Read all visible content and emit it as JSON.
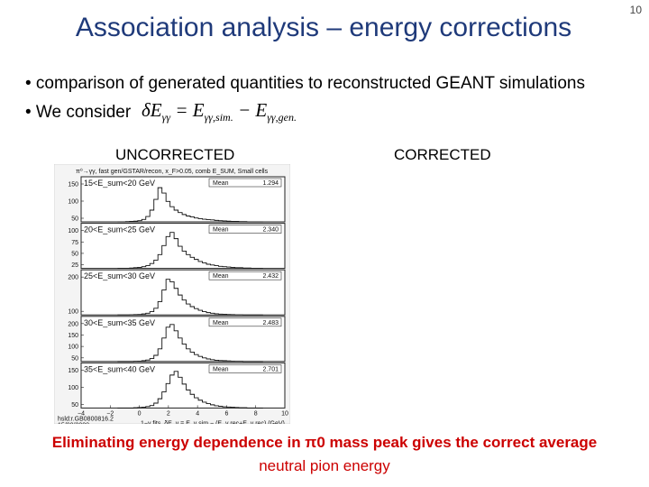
{
  "slide": {
    "title": "Association analysis – energy corrections",
    "page_number": "10",
    "bullets": [
      "• comparison of generated quantities to reconstructed GEANT simulations",
      "• We consider"
    ],
    "formula": {
      "lhs": "δE",
      "lhs_sub": "γγ",
      "eq": " = E",
      "t1_sub": "γγ,sim.",
      "minus": " − E",
      "t2_sub": "γγ,gen."
    },
    "headings": {
      "uncorrected": "UNCORRECTED",
      "corrected": "CORRECTED"
    },
    "conclusion": {
      "line1": "Eliminating energy dependence in π0 mass peak gives the correct average",
      "line2": "neutral pion energy"
    }
  },
  "chart_data": {
    "type": "histogram",
    "header": "π⁰→γγ, fast gen/GSTAR/recon, x_F>0.05, comb E_SUM, Small cells",
    "xlabel": "1−γ fits, δE_γ = E_γ,sim − (E_γ,rec+E_γ,rec) (GeV)",
    "x_ticks": [
      "−4",
      "−2",
      "0",
      "2",
      "4",
      "6",
      "8",
      "10"
    ],
    "xlim": [
      -4,
      10
    ],
    "footer": [
      "hsld:r.GB0800816.2",
      "15/08/2008"
    ],
    "panels": [
      {
        "range": "15<E_sum<20 GeV",
        "stat_label": "Mean",
        "mean": "1.294",
        "y_ticks": [
          "150",
          "100",
          "50"
        ],
        "ylim": [
          0,
          170
        ],
        "values": [
          0,
          0,
          1,
          2,
          3,
          5,
          10,
          22,
          48,
          92,
          140,
          118,
          84,
          62,
          48,
          38,
          30,
          24,
          20,
          16,
          13,
          11,
          9,
          8,
          6,
          5,
          4,
          3,
          2,
          2,
          1,
          1,
          0,
          0,
          0,
          0
        ]
      },
      {
        "range": "20<E_sum<25 GeV",
        "stat_label": "Mean",
        "mean": "2.340",
        "y_ticks": [
          "100",
          "75",
          "50",
          "25"
        ],
        "ylim": [
          0,
          120
        ],
        "values": [
          0,
          0,
          0,
          1,
          2,
          3,
          5,
          8,
          14,
          24,
          40,
          66,
          92,
          104,
          86,
          64,
          50,
          40,
          32,
          26,
          20,
          16,
          12,
          10,
          8,
          6,
          5,
          4,
          3,
          2,
          2,
          1,
          1,
          0,
          0,
          0
        ]
      },
      {
        "range": "25<E_sum<30 GeV",
        "stat_label": "Mean",
        "mean": "2.432",
        "y_ticks": [
          "200",
          "100"
        ],
        "ylim": [
          0,
          250
        ],
        "values": [
          0,
          0,
          0,
          1,
          2,
          3,
          6,
          10,
          20,
          40,
          80,
          150,
          215,
          200,
          160,
          120,
          90,
          66,
          50,
          38,
          28,
          20,
          14,
          10,
          7,
          5,
          4,
          3,
          2,
          1,
          1,
          0,
          0,
          0,
          0,
          0
        ]
      },
      {
        "range": "30<E_sum<35 GeV",
        "stat_label": "Mean",
        "mean": "2.483",
        "y_ticks": [
          "200",
          "150",
          "100",
          "50"
        ],
        "ylim": [
          0,
          230
        ],
        "values": [
          0,
          0,
          0,
          0,
          1,
          2,
          4,
          8,
          16,
          34,
          70,
          130,
          190,
          205,
          170,
          130,
          96,
          70,
          52,
          38,
          28,
          20,
          14,
          10,
          7,
          5,
          4,
          3,
          2,
          1,
          1,
          0,
          0,
          0,
          0,
          0
        ]
      },
      {
        "range": "35<E_sum<40 GeV",
        "stat_label": "Mean",
        "mean": "2.701",
        "y_ticks": [
          "150",
          "100",
          "50"
        ],
        "ylim": [
          0,
          170
        ],
        "values": [
          0,
          0,
          0,
          0,
          1,
          2,
          3,
          6,
          10,
          20,
          38,
          66,
          100,
          135,
          150,
          126,
          98,
          74,
          56,
          42,
          32,
          24,
          18,
          13,
          9,
          7,
          5,
          4,
          3,
          2,
          1,
          1,
          0,
          0,
          0,
          0
        ]
      }
    ]
  }
}
